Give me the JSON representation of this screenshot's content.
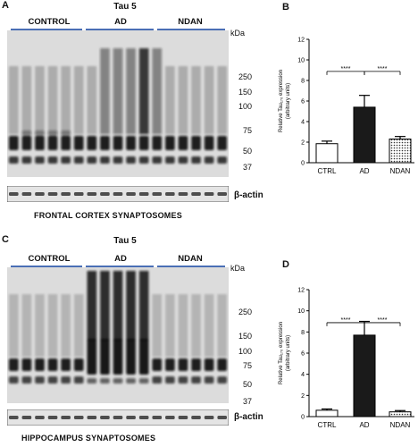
{
  "panels": {
    "A": {
      "letter": "A",
      "title": "Tau 5",
      "groups": [
        "CONTROL",
        "AD",
        "NDAN"
      ],
      "kda_label": "kDa",
      "markers": [
        "250",
        "150",
        "100",
        "75",
        "50",
        "37"
      ],
      "loading_label": "β-actin",
      "caption": "FRONTAL CORTEX SYNAPTOSOMES"
    },
    "C": {
      "letter": "C",
      "title": "Tau 5",
      "groups": [
        "CONTROL",
        "AD",
        "NDAN"
      ],
      "kda_label": "kDa",
      "markers": [
        "250",
        "150",
        "100",
        "75",
        "50",
        "37"
      ],
      "loading_label": "β-actin",
      "caption": "HIPPOCAMPUS SYNAPTOSOMES"
    },
    "B": {
      "letter": "B"
    },
    "D": {
      "letter": "D"
    }
  },
  "chart_data": [
    {
      "panel": "B",
      "type": "bar",
      "categories": [
        "CTRL",
        "AD",
        "NDAN"
      ],
      "values": [
        1.85,
        5.4,
        2.3
      ],
      "errors": [
        0.25,
        1.15,
        0.25
      ],
      "ylabel_lines": [
        "Relative Tau₁₇₆ expression",
        "(arbitrary units)"
      ],
      "ylim": [
        0,
        12
      ],
      "yticks": [
        0,
        2,
        4,
        6,
        8,
        10,
        12
      ],
      "significance": [
        {
          "from": 0,
          "to": 1,
          "label": "****"
        },
        {
          "from": 1,
          "to": 2,
          "label": "****"
        }
      ],
      "bar_fills": [
        "white",
        "black",
        "dots"
      ]
    },
    {
      "panel": "D",
      "type": "bar",
      "categories": [
        "CTRL",
        "AD",
        "NDAN"
      ],
      "values": [
        0.6,
        7.7,
        0.45
      ],
      "errors": [
        0.12,
        1.3,
        0.12
      ],
      "ylabel_lines": [
        "Relative Tau₁₇₆ expression",
        "(arbitrary units)"
      ],
      "ylim": [
        0,
        12
      ],
      "yticks": [
        0,
        2,
        4,
        6,
        8,
        10,
        12
      ],
      "significance": [
        {
          "from": 0,
          "to": 1,
          "label": "****"
        },
        {
          "from": 1,
          "to": 2,
          "label": "****"
        }
      ],
      "bar_fills": [
        "white",
        "black",
        "dots"
      ]
    }
  ]
}
